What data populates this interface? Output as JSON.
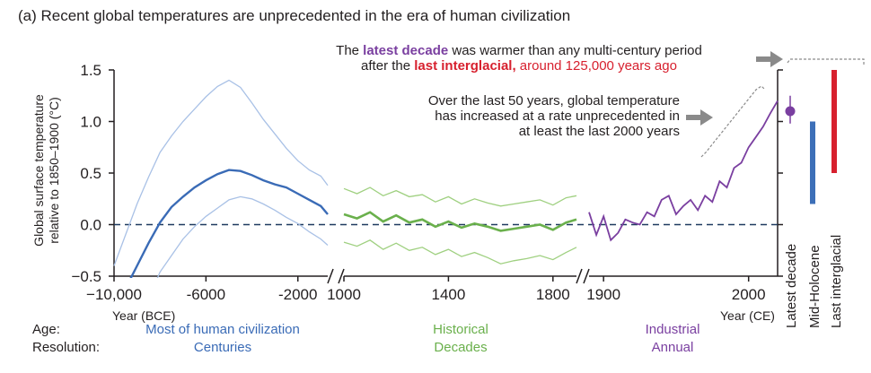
{
  "title": "(a) Recent global temperatures are unprecedented in the era of human civilization",
  "colors": {
    "blue": "#3a6bb6",
    "blue_light": "#a9c1e6",
    "green": "#6ab04c",
    "green_light": "#9fd080",
    "purple": "#7a3fa0",
    "red": "#d7202e",
    "bar_blue": "#3d6fb8",
    "gray_arrow": "#8a8a8a",
    "baseline": "#1f3a5f"
  },
  "annotations": {
    "latest_1_pre": "The ",
    "latest_1_bold": "latest decade",
    "latest_1_post": " was warmer than any multi-century period",
    "latest_2_pre": "after the ",
    "latest_2_bold": "last interglacial,",
    "latest_2_post": " around 125,000 years ago",
    "rate_1": "Over the last 50 years, global temperature",
    "rate_2": "has increased at a rate unprecedented in",
    "rate_3": "at least the last 2000 years"
  },
  "footer": {
    "age_label": "Age:",
    "res_label": "Resolution:",
    "seg1_age": "Most of human civilization",
    "seg1_res": "Centuries",
    "seg2_age": "Historical",
    "seg2_res": "Decades",
    "seg3_age": "Industrial",
    "seg3_res": "Annual"
  },
  "chart_data": {
    "type": "line",
    "ylabel_1": "Global surface temperature",
    "ylabel_2": "relative to 1850–1900 (°C)",
    "ylim": [
      -0.5,
      1.5
    ],
    "yticks": [
      -0.5,
      0.0,
      0.5,
      1.0,
      1.5
    ],
    "ytick_labels": [
      "−0.5",
      "0.0",
      "0.5",
      "1.0",
      "1.5"
    ],
    "baseline": 0.0,
    "panels": [
      {
        "name": "paleo",
        "xlabel": "Year (BCE)",
        "xlim": [
          -10000,
          -700
        ],
        "xticks": [
          -10000,
          -6000,
          -2000
        ],
        "xtick_labels": [
          "−10,000",
          "-6000",
          "-2000"
        ],
        "x": [
          -10000,
          -9500,
          -9000,
          -8500,
          -8000,
          -7500,
          -7000,
          -6500,
          -6000,
          -5500,
          -5000,
          -4500,
          -4000,
          -3500,
          -3000,
          -2500,
          -2000,
          -1500,
          -1000,
          -700
        ],
        "median": [
          -0.85,
          -0.62,
          -0.4,
          -0.18,
          0.02,
          0.17,
          0.27,
          0.36,
          0.43,
          0.49,
          0.53,
          0.52,
          0.48,
          0.43,
          0.39,
          0.36,
          0.3,
          0.24,
          0.18,
          0.1
        ],
        "upper": [
          -0.4,
          -0.1,
          0.2,
          0.46,
          0.7,
          0.86,
          1.0,
          1.12,
          1.24,
          1.34,
          1.4,
          1.33,
          1.18,
          1.02,
          0.88,
          0.74,
          0.62,
          0.53,
          0.47,
          0.38
        ],
        "lower": [
          -1.3,
          -1.12,
          -0.95,
          -0.72,
          -0.46,
          -0.3,
          -0.14,
          -0.02,
          0.08,
          0.16,
          0.24,
          0.27,
          0.25,
          0.2,
          0.14,
          0.07,
          0.01,
          -0.07,
          -0.14,
          -0.2
        ]
      },
      {
        "name": "historical",
        "xlim": [
          1000,
          1890
        ],
        "xticks": [
          1000,
          1400,
          1800
        ],
        "xtick_labels": [
          "1000",
          "1400",
          "1800"
        ],
        "x": [
          1000,
          1050,
          1100,
          1150,
          1200,
          1250,
          1300,
          1350,
          1400,
          1450,
          1500,
          1550,
          1600,
          1650,
          1700,
          1750,
          1800,
          1850,
          1890
        ],
        "median": [
          0.1,
          0.06,
          0.12,
          0.03,
          0.09,
          0.02,
          0.05,
          -0.02,
          0.03,
          -0.03,
          0.01,
          -0.02,
          -0.06,
          -0.04,
          -0.02,
          0.0,
          -0.05,
          0.02,
          0.05
        ],
        "upper": [
          0.35,
          0.3,
          0.36,
          0.28,
          0.33,
          0.27,
          0.29,
          0.22,
          0.27,
          0.2,
          0.25,
          0.21,
          0.18,
          0.2,
          0.22,
          0.24,
          0.19,
          0.26,
          0.28
        ],
        "lower": [
          -0.17,
          -0.21,
          -0.15,
          -0.24,
          -0.18,
          -0.25,
          -0.22,
          -0.29,
          -0.24,
          -0.31,
          -0.27,
          -0.32,
          -0.38,
          -0.35,
          -0.33,
          -0.3,
          -0.34,
          -0.27,
          -0.22
        ]
      },
      {
        "name": "industrial",
        "xlabel": "Year (CE)",
        "xlim": [
          1890,
          2020
        ],
        "xticks": [
          1900,
          2000
        ],
        "xtick_labels": [
          "1900",
          "2000"
        ],
        "x": [
          1890,
          1895,
          1900,
          1905,
          1910,
          1915,
          1920,
          1925,
          1930,
          1935,
          1940,
          1945,
          1950,
          1955,
          1960,
          1965,
          1970,
          1975,
          1980,
          1985,
          1990,
          1995,
          2000,
          2005,
          2010,
          2015,
          2020
        ],
        "values": [
          0.12,
          -0.1,
          0.08,
          -0.15,
          -0.08,
          0.05,
          0.02,
          0.0,
          0.12,
          0.08,
          0.24,
          0.28,
          0.1,
          0.18,
          0.24,
          0.14,
          0.28,
          0.22,
          0.42,
          0.36,
          0.55,
          0.6,
          0.75,
          0.85,
          0.95,
          1.08,
          1.2
        ]
      }
    ],
    "side_markers": [
      {
        "label": "Latest decade",
        "type": "point",
        "value": 1.1,
        "low": 0.98,
        "high": 1.25,
        "color": "#7a3fa0"
      },
      {
        "label": "Mid-Holocene",
        "type": "range",
        "low": 0.2,
        "high": 1.0,
        "color": "#3d6fb8"
      },
      {
        "label": "Last interglacial",
        "type": "range",
        "low": 0.5,
        "high": 1.5,
        "color": "#d7202e"
      }
    ]
  }
}
